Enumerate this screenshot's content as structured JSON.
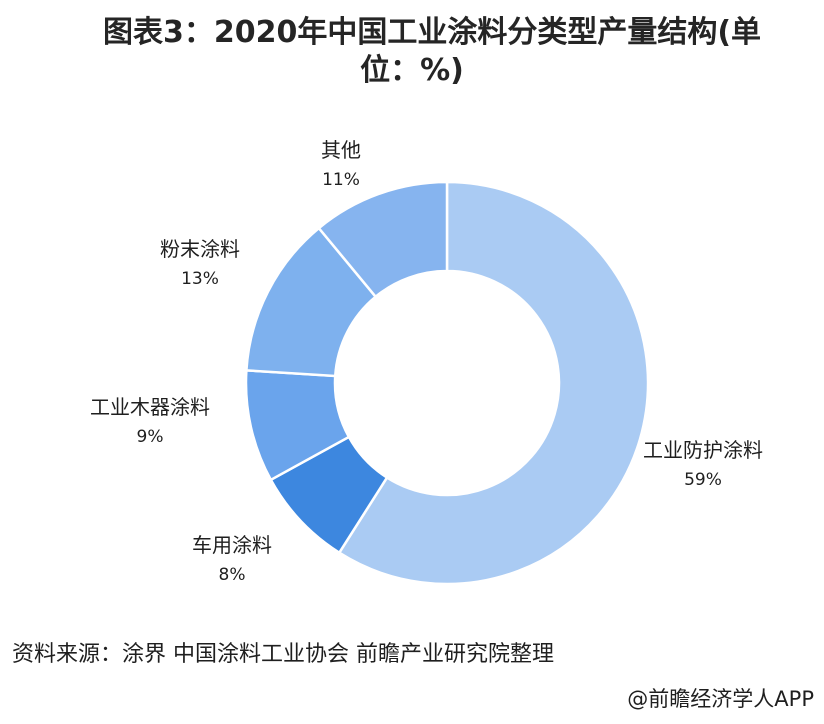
{
  "title": {
    "line1": "图表3：2020年中国工业涂料分类型产量结构(单",
    "line2": "位：%)"
  },
  "chart_data": {
    "type": "pie",
    "donut": true,
    "title": "图表3：2020年中国工业涂料分类型产量结构(单位：%)",
    "unit": "%",
    "slices": [
      {
        "label": "工业防护涂料",
        "value": 59,
        "value_label": "59%",
        "color": "#aacbf3"
      },
      {
        "label": "车用涂料",
        "value": 8,
        "value_label": "8%",
        "color": "#3d87df"
      },
      {
        "label": "工业木器涂料",
        "value": 9,
        "value_label": "9%",
        "color": "#6aa4ec"
      },
      {
        "label": "粉末涂料",
        "value": 13,
        "value_label": "13%",
        "color": "#7eb1ee"
      },
      {
        "label": "其他",
        "value": 11,
        "value_label": "11%",
        "color": "#86b4ef"
      }
    ]
  },
  "source": "资料来源：涂界 中国涂料工业协会 前瞻产业研究院整理",
  "credit": "@前瞻经济学人APP"
}
